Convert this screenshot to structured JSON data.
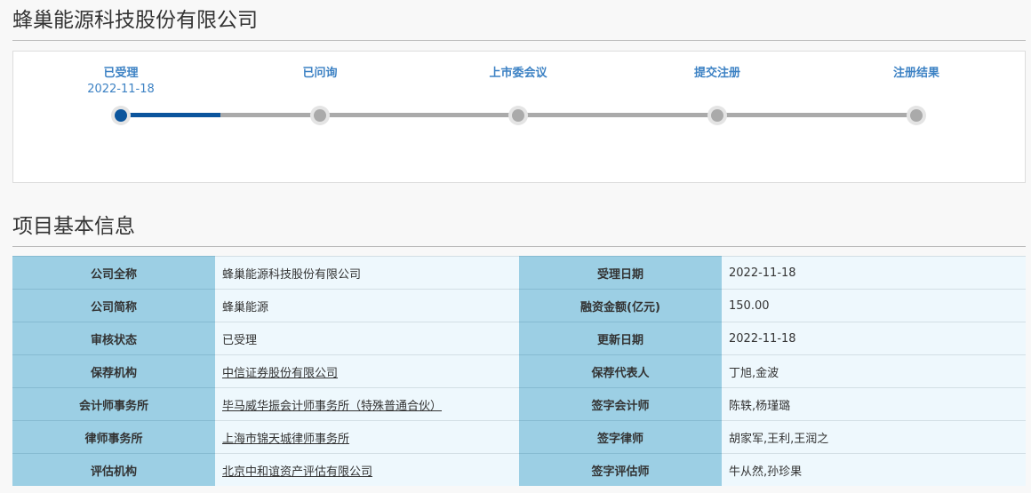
{
  "company_title": "蜂巢能源科技股份有限公司",
  "progress": {
    "steps": [
      {
        "label": "已受理",
        "date": "2022-11-18",
        "status": "active"
      },
      {
        "label": "已问询",
        "date": "",
        "status": "pending"
      },
      {
        "label": "上市委会议",
        "date": "",
        "status": "pending"
      },
      {
        "label": "提交注册",
        "date": "",
        "status": "pending"
      },
      {
        "label": "注册结果",
        "date": "",
        "status": "pending"
      }
    ],
    "fill_percent": 12.5,
    "colors": {
      "active": "#0b559d",
      "pending": "#aaaaaa",
      "label": "#3d82c4"
    }
  },
  "section_title": "项目基本信息",
  "info_rows": [
    {
      "k1": "公司全称",
      "v1": "蜂巢能源科技股份有限公司",
      "link1": false,
      "k2": "受理日期",
      "v2": "2022-11-18"
    },
    {
      "k1": "公司简称",
      "v1": "蜂巢能源",
      "link1": false,
      "k2": "融资金额(亿元)",
      "v2": "150.00"
    },
    {
      "k1": "审核状态",
      "v1": "已受理",
      "link1": false,
      "k2": "更新日期",
      "v2": "2022-11-18"
    },
    {
      "k1": "保荐机构",
      "v1": "中信证券股份有限公司",
      "link1": true,
      "k2": "保荐代表人",
      "v2": "丁旭,金波"
    },
    {
      "k1": "会计师事务所",
      "v1": "毕马威华振会计师事务所（特殊普通合伙）",
      "link1": true,
      "k2": "签字会计师",
      "v2": "陈轶,杨瑾璐"
    },
    {
      "k1": "律师事务所",
      "v1": "上海市锦天城律师事务所",
      "link1": true,
      "k2": "签字律师",
      "v2": "胡家军,王利,王润之"
    },
    {
      "k1": "评估机构",
      "v1": "北京中和谊资产评估有限公司",
      "link1": true,
      "k2": "签字评估师",
      "v2": "牛从然,孙珍果"
    }
  ]
}
